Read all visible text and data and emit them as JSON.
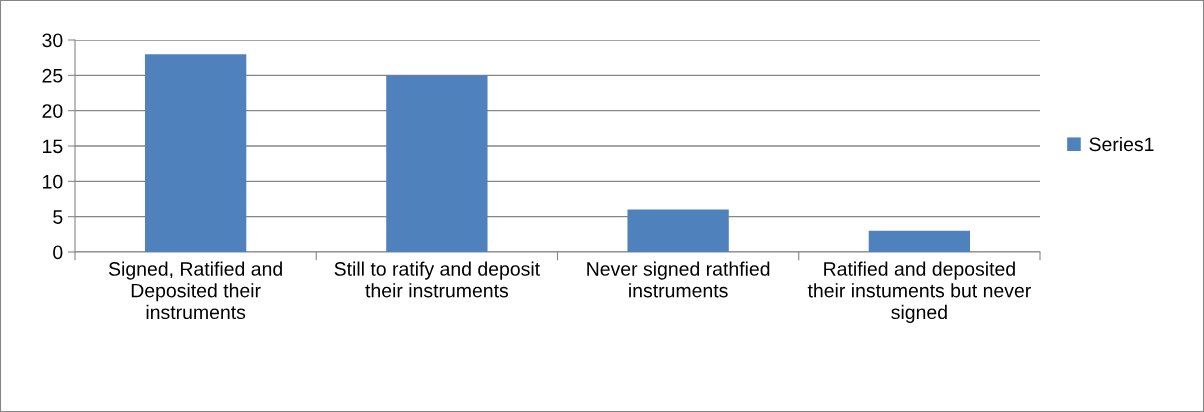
{
  "chart_data": {
    "type": "bar",
    "categories": [
      "Signed, Ratified and Deposited their instruments",
      "Still to ratify and deposit their instruments",
      "Never signed rathfied instruments",
      "Ratified and deposited their instuments but never signed"
    ],
    "series": [
      {
        "name": "Series1",
        "color": "#4f81bd",
        "values": [
          28,
          25,
          6,
          3
        ]
      }
    ],
    "ylim": [
      0,
      30
    ],
    "yticks": [
      0,
      5,
      10,
      15,
      20,
      25,
      30
    ],
    "grid": "y",
    "legend": "right"
  }
}
